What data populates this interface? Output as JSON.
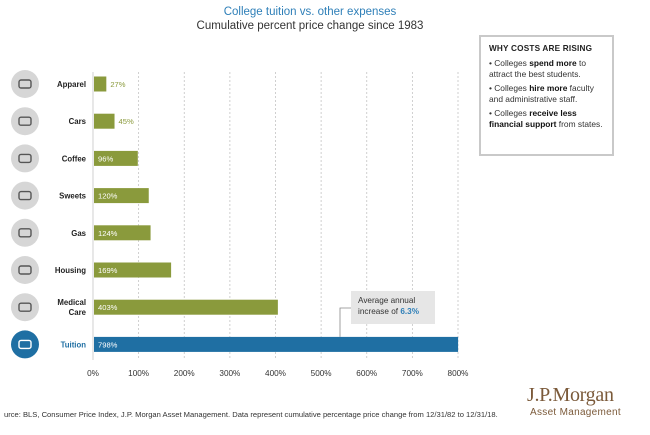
{
  "chart_data": {
    "type": "bar",
    "orientation": "horizontal",
    "title": "College tuition vs. other expenses",
    "subtitle": "Cumulative percent price change since 1983",
    "categories": [
      "Apparel",
      "Cars",
      "Coffee",
      "Sweets",
      "Gas",
      "Housing",
      "Medical Care",
      "Tuition"
    ],
    "icons": [
      "hanger-icon",
      "steering-wheel-icon",
      "coffee-cup-icon",
      "candy-icon",
      "gas-can-icon",
      "house-icon",
      "stethoscope-icon",
      "diploma-icon"
    ],
    "values": [
      27,
      45,
      96,
      120,
      124,
      169,
      403,
      798
    ],
    "value_labels": [
      "27%",
      "45%",
      "96%",
      "120%",
      "124%",
      "169%",
      "403%",
      "798%"
    ],
    "xlim": [
      0,
      800
    ],
    "xticks": [
      0,
      100,
      200,
      300,
      400,
      500,
      600,
      700,
      800
    ],
    "xtick_labels": [
      "0%",
      "100%",
      "200%",
      "300%",
      "400%",
      "500%",
      "600%",
      "700%",
      "800%"
    ],
    "grid": "vertical dashed",
    "colors": {
      "default": "#8a9a3c",
      "highlight": "#1f6fa3",
      "icon_bg": "#d6d6d6",
      "highlight_icon_bg": "#1f6fa3"
    },
    "highlight_category": "Tuition",
    "annotation": {
      "text": "Average annual increase of",
      "value": "6.3%"
    }
  },
  "sidebox": {
    "heading": "WHY COSTS ARE RISING",
    "items": [
      {
        "pre": "• Colleges ",
        "bold": "spend more",
        "post": " to attract the best students."
      },
      {
        "pre": "• Colleges ",
        "bold": "hire more",
        "post": " faculty and administrative staff."
      },
      {
        "pre": "• Colleges ",
        "bold": "receive less financial support",
        "post": " from states."
      }
    ]
  },
  "source": "urce: BLS, Consumer Price Index, J.P. Morgan Asset Management. Data represent cumulative percentage price change from 12/31/82 to 12/31/18.",
  "logo": {
    "brand": "J.P.Morgan",
    "sub": "Asset Management"
  }
}
